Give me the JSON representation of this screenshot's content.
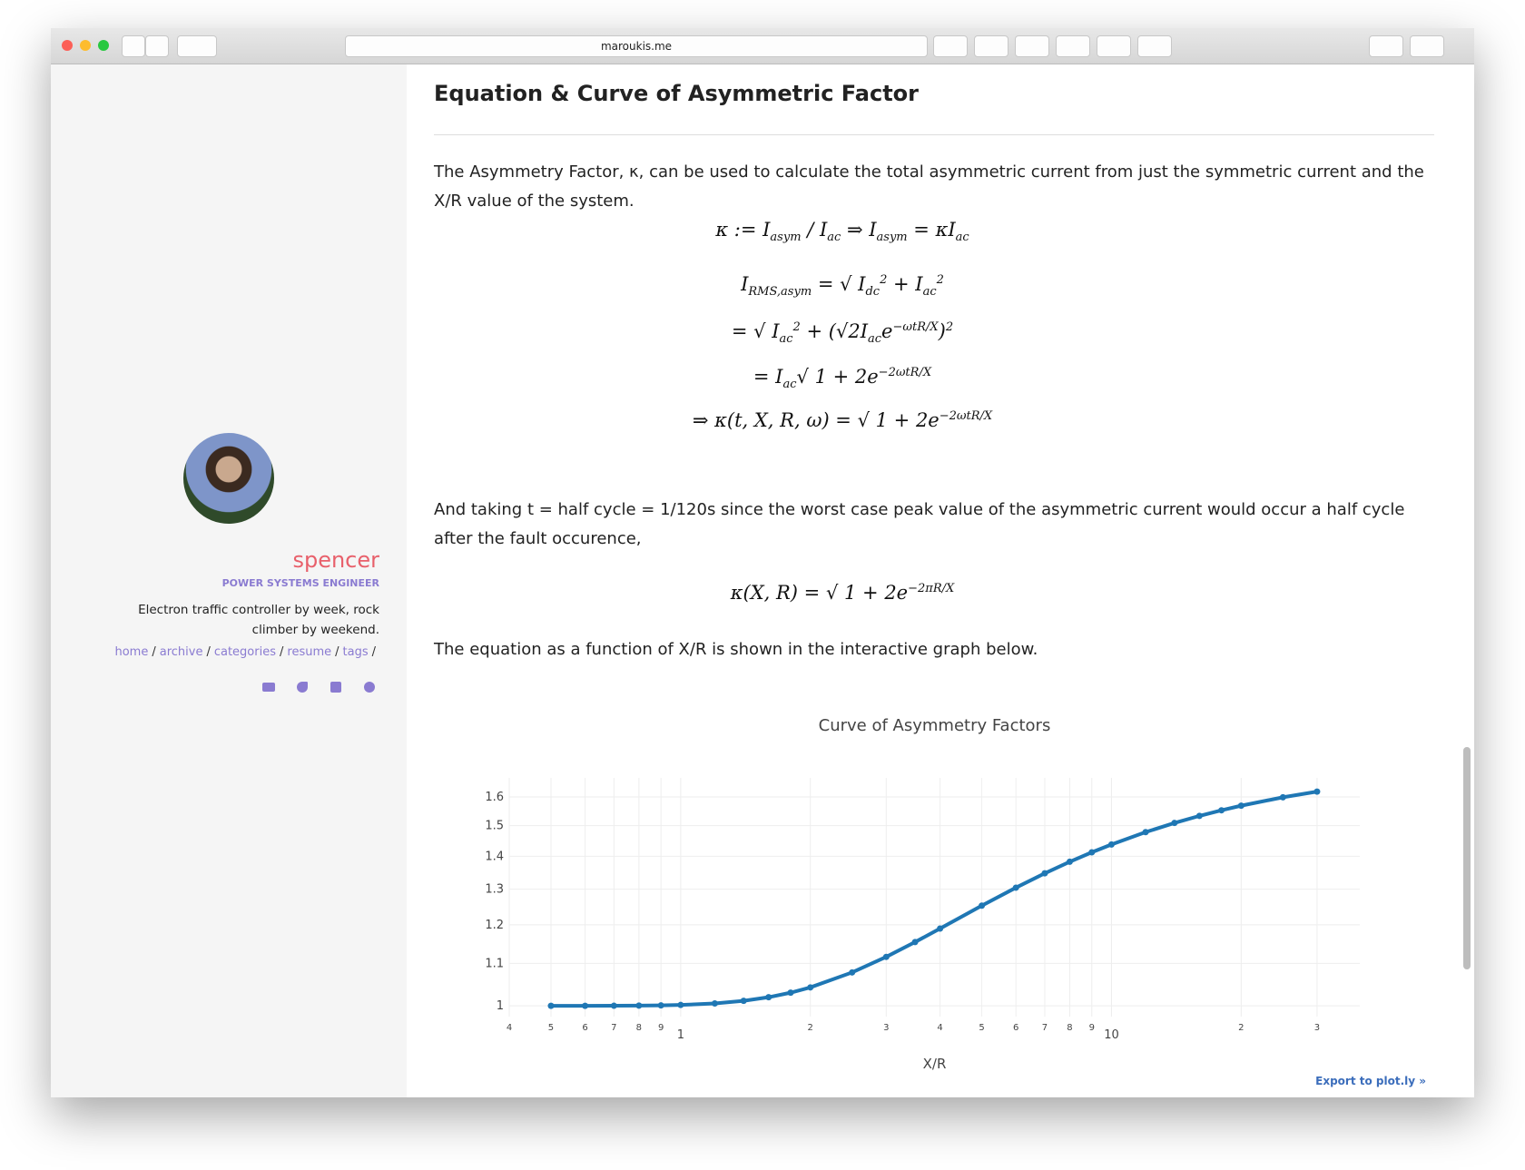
{
  "browser": {
    "url": "maroukis.me"
  },
  "sidebar": {
    "name": "spencer",
    "role": "POWER SYSTEMS ENGINEER",
    "bio": "Electron traffic controller by week, rock climber by weekend.",
    "nav": [
      "home",
      "archive",
      "categories",
      "resume",
      "tags"
    ],
    "separator": "/"
  },
  "article": {
    "heading": "Equation & Curve of Asymmetric Factor",
    "intro": "The Asymmetry Factor, κ, can be used to calculate the total asymmetric current from just the symmetric current and the X/R value of the system.",
    "equations": [
      [
        "κ := I",
        {
          "sub": "asym"
        },
        " / I",
        {
          "sub": "ac"
        },
        " ⇒ I",
        {
          "sub": "asym"
        },
        " = κI",
        {
          "sub": "ac"
        }
      ],
      [
        "I",
        {
          "sub": "RMS,asym"
        },
        " = √ I",
        {
          "sub": "dc"
        },
        {
          "sup": "2"
        },
        " + I",
        {
          "sub": "ac"
        },
        {
          "sup": "2"
        }
      ],
      [
        "= √ I",
        {
          "sub": "ac"
        },
        {
          "sup": "2"
        },
        " + (√2I",
        {
          "sub": "ac"
        },
        "e",
        {
          "sup": "−ωtR/X"
        },
        ")",
        {
          "sup": "2"
        }
      ],
      [
        "= I",
        {
          "sub": "ac"
        },
        "√ 1 + 2e",
        {
          "sup": "−2ωtR/X"
        }
      ],
      [
        "⇒ κ(t, X, R, ω) = √ 1 + 2e",
        {
          "sup": "−2ωtR/X"
        }
      ]
    ],
    "paragraph_2": "And taking t = half cycle = 1/120s since the worst case peak value of the asymmetric current would occur a half cycle after the fault occurence,",
    "equation_2": [
      "κ(X, R) = √ 1 + 2e",
      {
        "sup": "−2πR/X"
      }
    ],
    "paragraph_3": "The equation as a function of X/R is shown in the interactive graph below.",
    "export_link": "Export to plot.ly »"
  },
  "chart_data": {
    "type": "line",
    "title": "Curve of Asymmetry Factors",
    "x_label": "X/R",
    "xscale": "log",
    "yscale": "log",
    "grid": true,
    "xlim": [
      0.4,
      37.7
    ],
    "ylim": [
      0.976,
      1.67
    ],
    "xticks": [
      {
        "value": 0.4,
        "label": "4"
      },
      {
        "value": 0.5,
        "label": "5"
      },
      {
        "value": 0.6,
        "label": "6"
      },
      {
        "value": 0.7,
        "label": "7"
      },
      {
        "value": 0.8,
        "label": "8"
      },
      {
        "value": 0.9,
        "label": "9"
      },
      1,
      {
        "value": 2,
        "label": "2"
      },
      {
        "value": 3,
        "label": "3"
      },
      {
        "value": 4,
        "label": "4"
      },
      {
        "value": 5,
        "label": "5"
      },
      {
        "value": 6,
        "label": "6"
      },
      {
        "value": 7,
        "label": "7"
      },
      {
        "value": 8,
        "label": "8"
      },
      {
        "value": 9,
        "label": "9"
      },
      10,
      {
        "value": 20,
        "label": "2"
      },
      {
        "value": 30,
        "label": "3"
      }
    ],
    "yticks": [
      1,
      1.1,
      1.2,
      1.3,
      1.4,
      1.5,
      1.6
    ],
    "x": [
      0.5,
      0.6,
      0.7,
      0.8,
      0.9,
      1.0,
      1.2,
      1.4,
      1.6,
      1.8,
      2.0,
      2.5,
      3,
      3.5,
      4,
      5,
      6,
      7,
      8,
      9,
      10,
      12,
      14,
      16,
      18,
      20,
      25,
      30
    ],
    "series": [
      {
        "color": "#1f77b4",
        "values": [
          1.0,
          1.0,
          1.0001,
          1.0004,
          1.0009,
          1.0019,
          1.0053,
          1.0112,
          1.0195,
          1.03,
          1.0423,
          1.078,
          1.1164,
          1.1542,
          1.1899,
          1.2527,
          1.3045,
          1.3473,
          1.3828,
          1.4124,
          1.4377,
          1.4781,
          1.5089,
          1.5331,
          1.5526,
          1.5687,
          1.5986,
          1.6193
        ]
      }
    ]
  }
}
